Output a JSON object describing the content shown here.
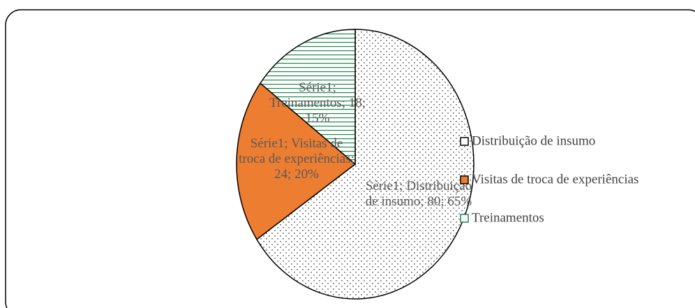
{
  "chart_data": {
    "type": "pie",
    "series_name": "Série1",
    "categories": [
      "Distribuição de insumo",
      "Visitas de troca de experiências",
      "Treinamentos"
    ],
    "values": [
      80,
      24,
      18
    ],
    "value_labels": [
      "Série1; Distribuição de insumo; 80; 65%",
      "Série1; Visitas de troca de experiências; 24; 20%",
      "Série1; Treinamentos; 18; 15%"
    ],
    "colors": [
      "#000000",
      "#ed7d31",
      "#1e8a4c"
    ],
    "fills": [
      "dots",
      "solid",
      "hlines"
    ],
    "legend": "right"
  }
}
